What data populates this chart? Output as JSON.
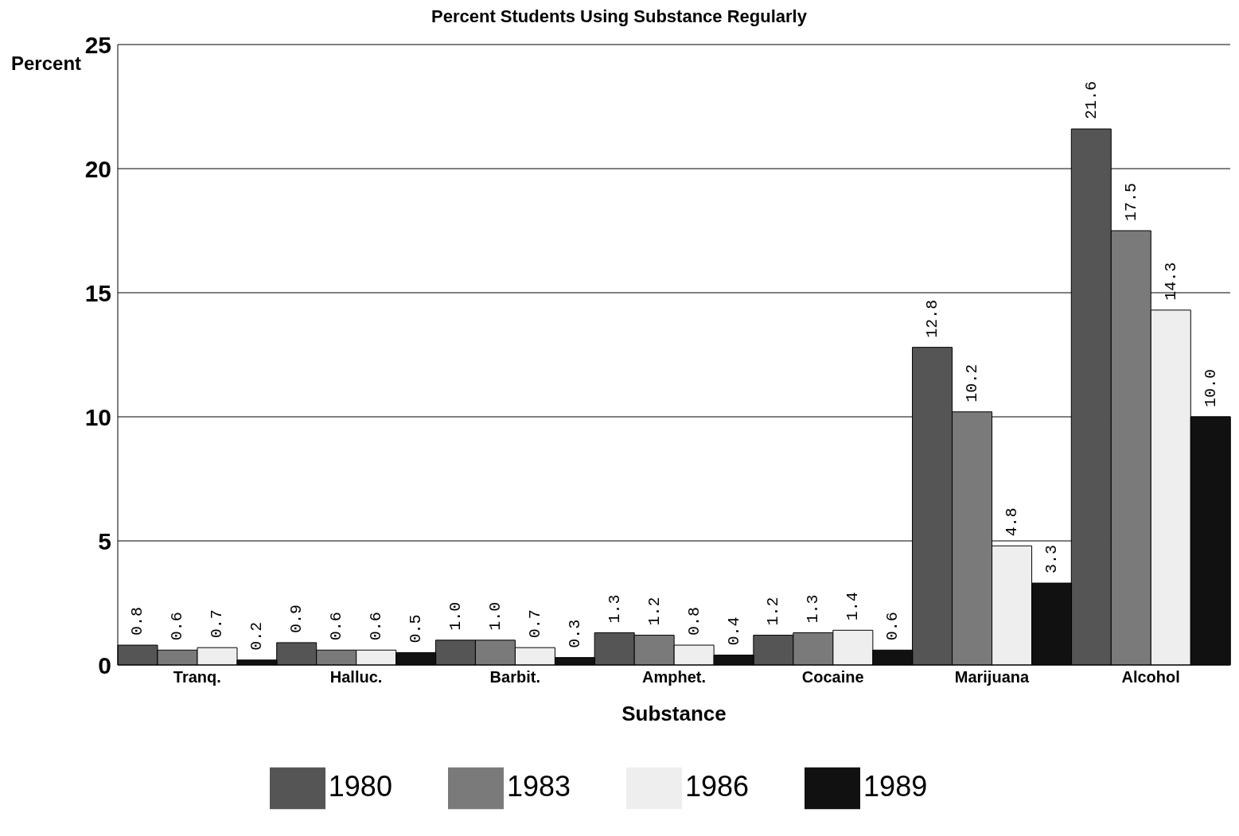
{
  "chart_data": {
    "type": "bar",
    "title": "Percent Students Using Substance Regularly",
    "xlabel": "Substance",
    "ylabel": "Percent",
    "categories": [
      "Tranq.",
      "Halluc.",
      "Barbit.",
      "Amphet.",
      "Cocaine",
      "Marijuana",
      "Alcohol"
    ],
    "series": [
      {
        "name": "1980",
        "color": "#555555",
        "values": [
          0.8,
          0.9,
          1.0,
          1.3,
          1.2,
          12.8,
          21.6
        ],
        "value_labels": [
          "0.8",
          "0.9",
          "1.0",
          "1.3",
          "1.2",
          "12.8",
          "21.6"
        ]
      },
      {
        "name": "1983",
        "color": "#7a7a7a",
        "values": [
          0.6,
          0.6,
          1.0,
          1.2,
          1.3,
          10.2,
          17.5
        ],
        "value_labels": [
          "0.6",
          "0.6",
          "1.0",
          "1.2",
          "1.3",
          "10.2",
          "17.5"
        ]
      },
      {
        "name": "1986",
        "color": "#eeeeee",
        "values": [
          0.7,
          0.6,
          0.7,
          0.8,
          1.4,
          4.8,
          14.3
        ],
        "value_labels": [
          "0.7",
          "0.6",
          "0.7",
          "0.8",
          "1.4",
          "4.8",
          "14.3"
        ]
      },
      {
        "name": "1989",
        "color": "#111111",
        "values": [
          0.2,
          0.5,
          0.3,
          0.4,
          0.6,
          3.3,
          10.0
        ],
        "value_labels": [
          "0.2",
          "0.5",
          "0.3",
          "0.4",
          "0.6",
          "3.3",
          "10.0"
        ]
      }
    ],
    "ylim": [
      0,
      25
    ],
    "yticks": [
      0,
      5,
      10,
      15,
      20,
      25
    ],
    "grid": "y",
    "legend": "bottom"
  }
}
